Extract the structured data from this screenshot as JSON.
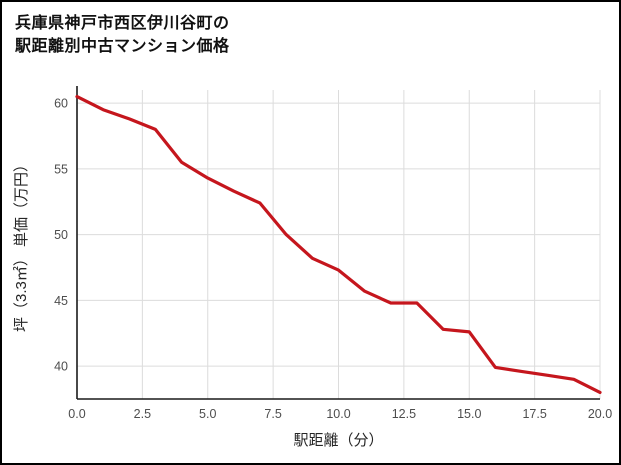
{
  "title": {
    "line1": "兵庫県神戸市西区伊川谷町の",
    "line2": "駅距離別中古マンション価格"
  },
  "colors": {
    "line": "#c5161d",
    "grid": "#dcdcdc",
    "axis": "#1a1a1a",
    "tick_text": "#4d4d4d",
    "label_text": "#262626",
    "background": "#ffffff",
    "border": "#000000"
  },
  "chart_data": {
    "type": "line",
    "title": "兵庫県神戸市西区伊川谷町の駅距離別中古マンション価格",
    "xlabel": "駅距離（分）",
    "ylabel": "坪（3.3㎡） 単価（万円）",
    "xlim": [
      0,
      20
    ],
    "ylim": [
      37.5,
      61
    ],
    "grid": true,
    "legend": "none",
    "x": [
      0,
      1,
      2,
      3,
      4,
      5,
      6,
      7,
      8,
      9,
      10,
      11,
      12,
      13,
      14,
      15,
      16,
      17,
      18,
      19,
      20
    ],
    "y": [
      60.5,
      59.5,
      58.8,
      58.0,
      55.5,
      54.3,
      53.3,
      52.4,
      50.0,
      48.2,
      47.3,
      45.7,
      44.8,
      44.8,
      42.8,
      42.6,
      39.9,
      39.6,
      39.3,
      39.0,
      38.0
    ],
    "xticks": [
      0,
      2.5,
      5,
      7.5,
      10,
      12.5,
      15,
      17.5,
      20
    ],
    "xtick_labels": [
      "0.0",
      "2.5",
      "5.0",
      "7.5",
      "10.0",
      "12.5",
      "15.0",
      "17.5",
      "20.0"
    ],
    "yticks": [
      40,
      45,
      50,
      55,
      60
    ],
    "ytick_labels": [
      "40",
      "45",
      "50",
      "55",
      "60"
    ]
  }
}
